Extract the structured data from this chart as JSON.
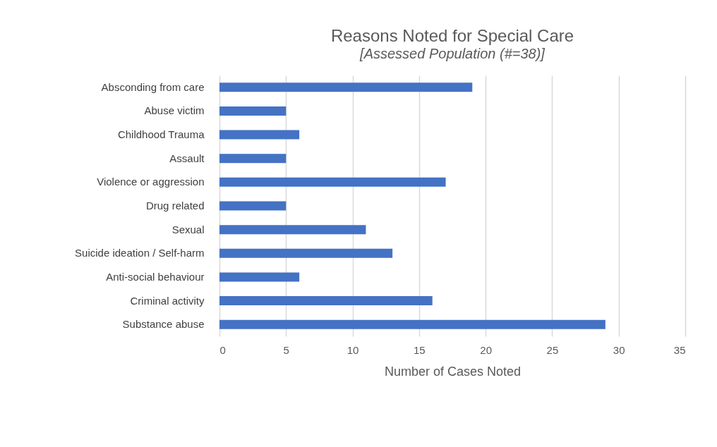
{
  "chart_data": {
    "type": "bar",
    "orientation": "horizontal",
    "title": "Reasons Noted for Special Care",
    "subtitle": "[Assessed Population (#=38)]",
    "xlabel": "Number of Cases Noted",
    "categories": [
      "Absconding from care",
      "Abuse victim",
      "Childhood Trauma",
      "Assault",
      "Violence or aggression",
      "Drug related",
      "Sexual",
      "Suicide ideation / Self-harm",
      "Anti-social behaviour",
      "Criminal activity",
      "Substance abuse"
    ],
    "values": [
      19,
      5,
      6,
      5,
      17,
      5,
      11,
      13,
      6,
      16,
      29
    ],
    "color": "#4472c4",
    "xlim": [
      0,
      35
    ],
    "xticks": [
      0,
      5,
      10,
      15,
      20,
      25,
      30,
      35
    ],
    "grid": "x"
  }
}
